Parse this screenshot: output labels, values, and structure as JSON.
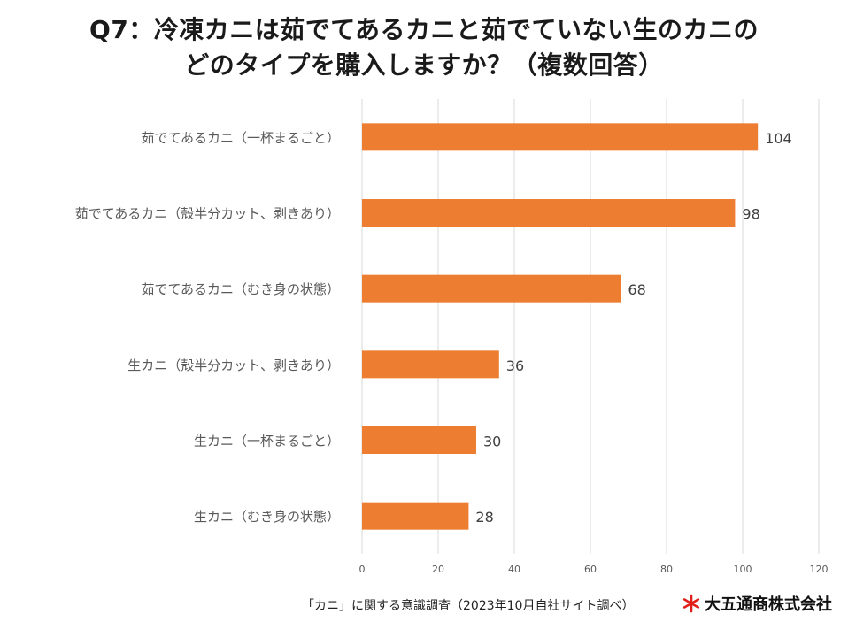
{
  "title_lines": [
    "Q7：冷凍カニは茹でてあるカニと茹でていない生のカニの",
    "どのタイプを購入しますか？（複数回答）"
  ],
  "chart_data": {
    "type": "bar",
    "orientation": "horizontal",
    "categories": [
      "茹でてあるカニ（一杯まるごと）",
      "茹でてあるカニ（殻半分カット、剥きあり）",
      "茹でてあるカニ（むき身の状態）",
      "生カニ（殻半分カット、剥きあり）",
      "生カニ（一杯まるごと）",
      "生カニ（むき身の状態）"
    ],
    "values": [
      104,
      98,
      68,
      36,
      30,
      28
    ],
    "xlim": [
      0,
      120
    ],
    "xticks": [
      0,
      20,
      40,
      60,
      80,
      100,
      120
    ],
    "grid": true,
    "bar_color": "#ED7D31",
    "grid_color": "#D9D9D9",
    "label_color": "#595959"
  },
  "footer": {
    "source": "「カニ」に関する意識調査（2023年10月自社サイト調べ）",
    "company": "大五通商株式会社",
    "logo_color": "#E0201B"
  }
}
